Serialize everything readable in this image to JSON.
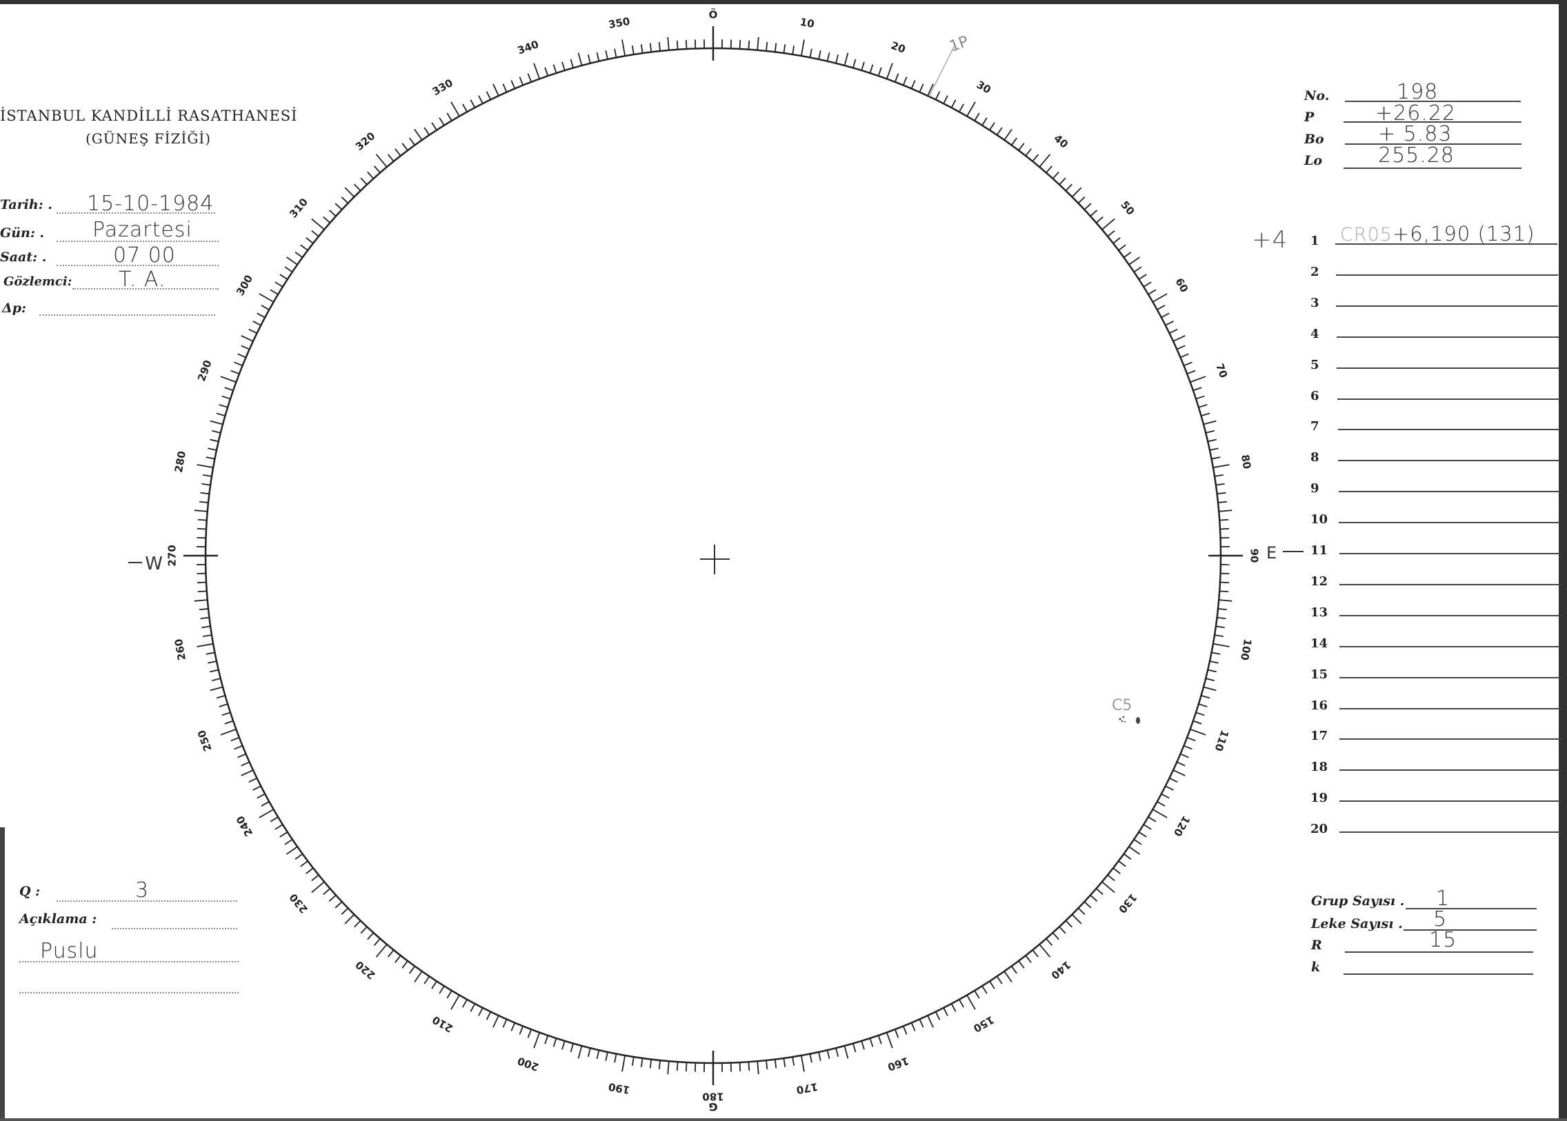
{
  "header": {
    "title": "İSTANBUL KANDİLLİ RASATHANESİ",
    "subtitle": "(GÜNEŞ FİZİĞİ)"
  },
  "observation": [
    {
      "label": "Tarih: .",
      "value": "15-10-1984"
    },
    {
      "label": "Gün: .",
      "value": "Pazartesi"
    },
    {
      "label": "Saat: .",
      "value": "07 00"
    },
    {
      "label": "Gözlemci:",
      "value": "T. A."
    },
    {
      "label": "Δp:",
      "value": ""
    }
  ],
  "ephemeris": [
    {
      "label": "No.",
      "value": "198"
    },
    {
      "label": "P",
      "value": "+26.22"
    },
    {
      "label": "Bo",
      "value": "+ 5.83"
    },
    {
      "label": "Lo",
      "value": "255.28"
    }
  ],
  "groups": {
    "margin_note": "+4",
    "rows": [
      "1",
      "2",
      "3",
      "4",
      "5",
      "6",
      "7",
      "8",
      "9",
      "10",
      "11",
      "12",
      "13",
      "14",
      "15",
      "16",
      "17",
      "18",
      "19",
      "20"
    ],
    "entries": {
      "1": {
        "faint": "CR05",
        "text": "+6,190 (131)"
      }
    }
  },
  "quality": {
    "q_label": "Q :",
    "q_value": "3",
    "remark_label": "Açıklama :",
    "remark_value": "Puslu"
  },
  "counts": [
    {
      "label": "Grup Sayısı .",
      "value": "1"
    },
    {
      "label": "Leke Sayısı .",
      "value": "5"
    },
    {
      "label": "R",
      "value": "15"
    },
    {
      "label": "k",
      "value": ""
    }
  ],
  "disk": {
    "top_label": "Ö",
    "bottom_letter": "G",
    "east_label": "E",
    "west_label": "W",
    "scale_labels": [
      "Ö",
      "10",
      "20",
      "30",
      "40",
      "50",
      "60",
      "70",
      "80",
      "90",
      "100",
      "110",
      "120",
      "130",
      "140",
      "150",
      "160",
      "170",
      "180",
      "190",
      "200",
      "210",
      "220",
      "230",
      "240",
      "250",
      "260",
      "270",
      "280",
      "290",
      "300",
      "310",
      "320",
      "330",
      "340",
      "350"
    ],
    "p_mark": "1P",
    "spot_label": "C5",
    "ink_color": "#222222"
  }
}
